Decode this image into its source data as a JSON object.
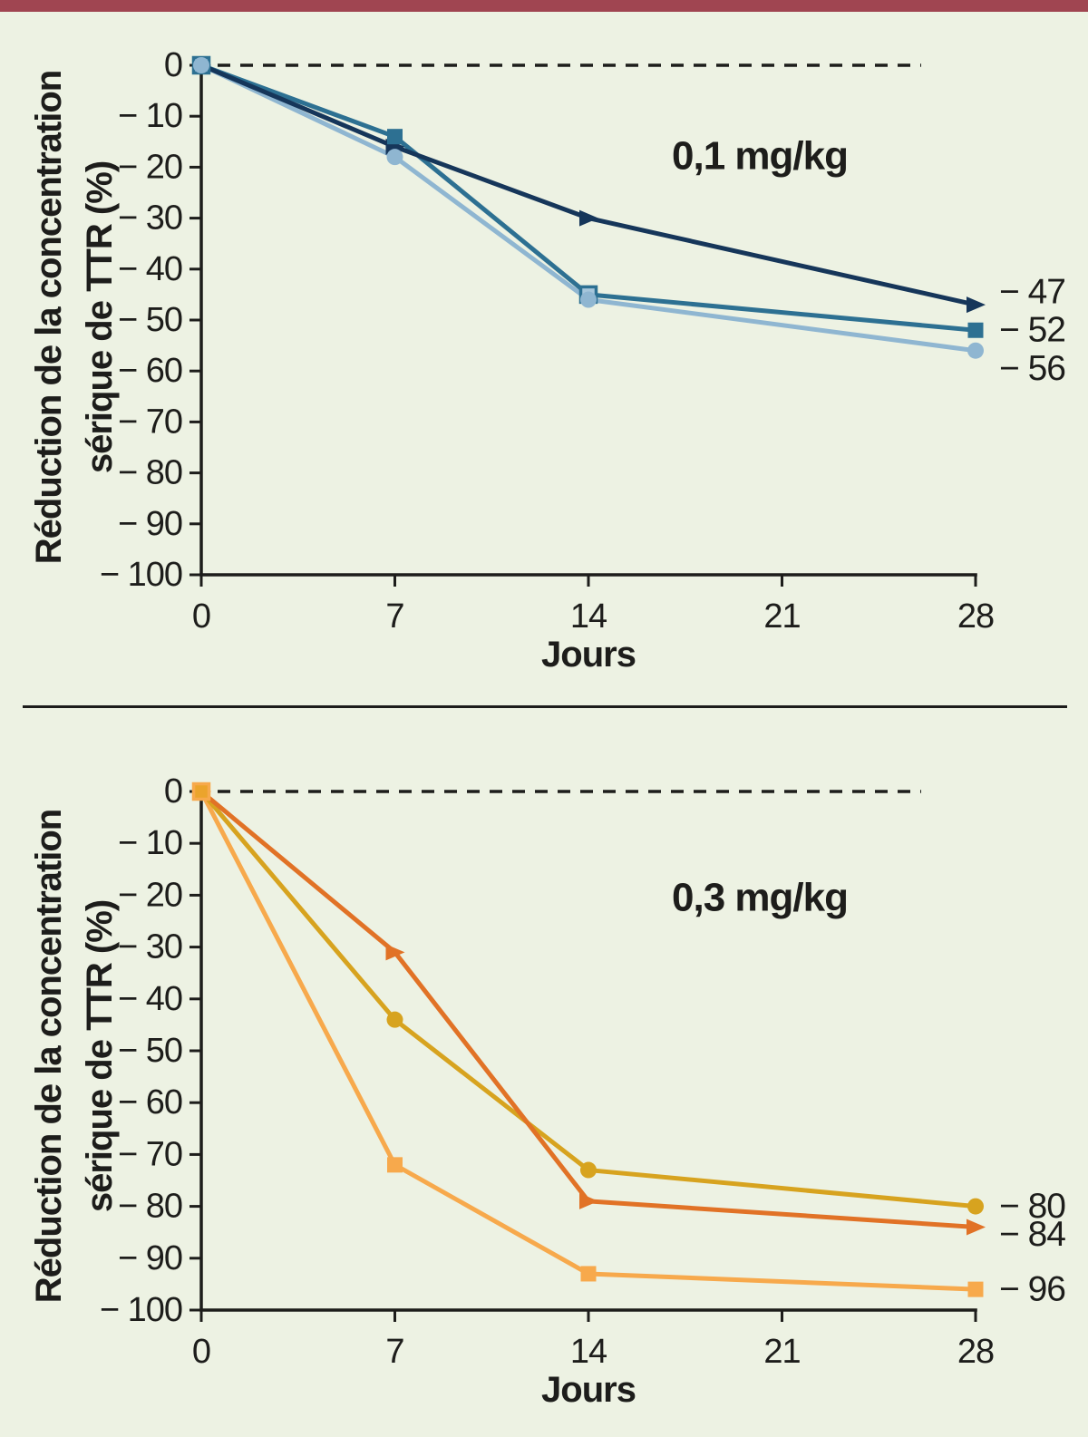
{
  "page": {
    "background": "#edf2e3",
    "top_bar_color": "#a04551",
    "divider_color": "#1d1d1b",
    "ink": "#1d1d1b"
  },
  "chart_data": [
    {
      "type": "line",
      "dose_label": "0,1 mg/kg",
      "xlabel": "Jours",
      "ylabel_lines": [
        "Réduction de la concentration",
        "sérique de TTR (%)"
      ],
      "xlim": [
        0,
        28
      ],
      "ylim": [
        -100,
        0
      ],
      "grid": false,
      "baseline": {
        "value": 0,
        "style": "dashed"
      },
      "x": [
        0,
        7,
        14,
        28
      ],
      "xticks": [
        {
          "v": 0,
          "label": "0"
        },
        {
          "v": 7,
          "label": "7"
        },
        {
          "v": 14,
          "label": "14"
        },
        {
          "v": 21,
          "label": "21"
        },
        {
          "v": 28,
          "label": "28"
        }
      ],
      "yticks": [
        {
          "v": 0,
          "label": "0"
        },
        {
          "v": -10,
          "label": "− 10"
        },
        {
          "v": -20,
          "label": "− 20"
        },
        {
          "v": -30,
          "label": "− 30"
        },
        {
          "v": -40,
          "label": "− 40"
        },
        {
          "v": -50,
          "label": "− 50"
        },
        {
          "v": -60,
          "label": "− 60"
        },
        {
          "v": -70,
          "label": "− 70"
        },
        {
          "v": -80,
          "label": "− 80"
        },
        {
          "v": -90,
          "label": "− 90"
        },
        {
          "v": -100,
          "label": "− 100"
        }
      ],
      "series": [
        {
          "name": "light-blue-circle",
          "marker": "circle",
          "color": "#8fb6d1",
          "values": [
            0,
            -18,
            -46,
            -56
          ],
          "end_label": "− 56",
          "end_label_dy": 20
        },
        {
          "name": "teal-square",
          "marker": "square",
          "color": "#2d7092",
          "values": [
            0,
            -14,
            -45,
            -52
          ],
          "end_label": "− 52",
          "end_label_dy": 0,
          "marker_fills": [
            "#a6c6db",
            null,
            "#a6c6db",
            null
          ]
        },
        {
          "name": "navy-triangle",
          "marker": "triangle",
          "color": "#16365a",
          "values": [
            0,
            -16,
            -30,
            -47
          ],
          "end_label": "− 47",
          "end_label_dy": -14
        }
      ]
    },
    {
      "type": "line",
      "dose_label": "0,3 mg/kg",
      "xlabel": "Jours",
      "ylabel_lines": [
        "Réduction de la concentration",
        "sérique de TTR (%)"
      ],
      "xlim": [
        0,
        28
      ],
      "ylim": [
        -100,
        0
      ],
      "grid": false,
      "baseline": {
        "value": 0,
        "style": "dashed"
      },
      "x": [
        0,
        7,
        14,
        28
      ],
      "xticks": [
        {
          "v": 0,
          "label": "0"
        },
        {
          "v": 7,
          "label": "7"
        },
        {
          "v": 14,
          "label": "14"
        },
        {
          "v": 21,
          "label": "21"
        },
        {
          "v": 28,
          "label": "28"
        }
      ],
      "yticks": [
        {
          "v": 0,
          "label": "0"
        },
        {
          "v": -10,
          "label": "− 10"
        },
        {
          "v": -20,
          "label": "− 20"
        },
        {
          "v": -30,
          "label": "− 30"
        },
        {
          "v": -40,
          "label": "− 40"
        },
        {
          "v": -50,
          "label": "− 50"
        },
        {
          "v": -60,
          "label": "− 60"
        },
        {
          "v": -70,
          "label": "− 70"
        },
        {
          "v": -80,
          "label": "− 80"
        },
        {
          "v": -90,
          "label": "− 90"
        },
        {
          "v": -100,
          "label": "− 100"
        }
      ],
      "series": [
        {
          "name": "light-orange-square",
          "marker": "square",
          "color": "#f7a94c",
          "values": [
            0,
            -72,
            -93,
            -96
          ],
          "end_label": "− 96",
          "end_label_dy": 0,
          "marker_fills": [
            "#eba42c",
            null,
            null,
            null
          ]
        },
        {
          "name": "gold-circle",
          "marker": "circle",
          "color": "#d7a31f",
          "values": [
            0,
            -44,
            -73,
            -80
          ],
          "end_label": "− 80",
          "end_label_dy": 0
        },
        {
          "name": "orange-triangle",
          "marker": "triangle",
          "color": "#e17226",
          "values": [
            0,
            -31,
            -79,
            -84
          ],
          "end_label": "− 84",
          "end_label_dy": 8
        }
      ]
    }
  ]
}
